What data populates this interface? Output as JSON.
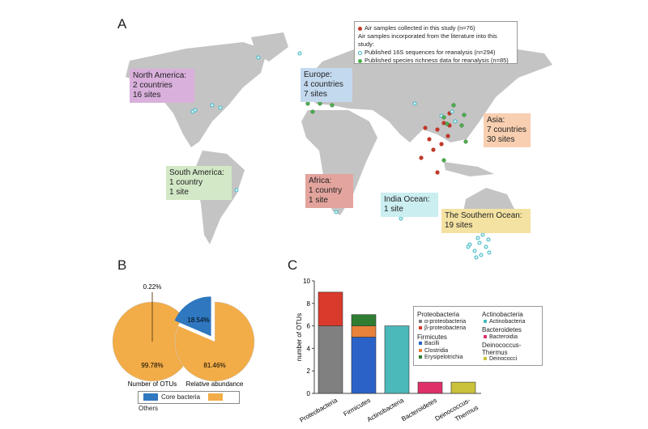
{
  "panels": {
    "a": "A",
    "b": "B",
    "c": "C"
  },
  "map": {
    "legend": {
      "collected": "Air samples collected in this study (n=76)",
      "incorporated": "Air samples incorporated from the literature into this study:",
      "sequences": "Published 16S sequences for reanalysis (n=294)",
      "richness": "Published species richness data for reanalysis (n=85)"
    },
    "colors": {
      "land": "#c4c4c4",
      "collected": "#c0392b",
      "sequences": "#3cb7c4",
      "richness": "#4caf50"
    },
    "regions": [
      {
        "lines": [
          "North America:",
          "2 countries",
          "16 sites"
        ],
        "color": "#d9b0dc"
      },
      {
        "lines": [
          "Europe:",
          "4 countries",
          "7 sites"
        ],
        "color": "#c3d9ee"
      },
      {
        "lines": [
          "Asia:",
          "7 countries",
          "30 sites"
        ],
        "color": "#f8cfb0"
      },
      {
        "lines": [
          "South America:",
          "1 country",
          "1 site"
        ],
        "color": "#d3e8c6"
      },
      {
        "lines": [
          "Africa:",
          "1 country",
          "1 site"
        ],
        "color": "#e3a49d"
      },
      {
        "lines": [
          "India Ocean:",
          "1 site"
        ],
        "color": "#cbeef0"
      },
      {
        "lines": [
          "The Southern Ocean:",
          "19 sites"
        ],
        "color": "#f4e2a2"
      }
    ]
  },
  "chart_data": [
    {
      "type": "pie",
      "title": "Number of OTUs",
      "slices": [
        {
          "label": "Core bacteria",
          "value": 0.22,
          "text": "0.22%"
        },
        {
          "label": "Others",
          "value": 99.78,
          "text": "99.78%"
        }
      ]
    },
    {
      "type": "pie",
      "title": "Relative abundance",
      "slices": [
        {
          "label": "Core bacteria",
          "value": 18.54,
          "text": "18.54%"
        },
        {
          "label": "Others",
          "value": 81.46,
          "text": "81.46%"
        }
      ]
    },
    {
      "type": "bar",
      "stacked": true,
      "ylabel": "number of OTUs",
      "ylim": [
        0,
        10
      ],
      "yticks": [
        "0",
        "2",
        "4",
        "6",
        "8",
        "10"
      ],
      "categories": [
        "Proteobacteria",
        "Firmicutes",
        "Actinobacteria",
        "Bacteroidetes",
        "Deinococcus-Thermus"
      ],
      "series": [
        {
          "name": "α-proteobacteria",
          "group": "Proteobacteria",
          "color": "#808080",
          "values": [
            6,
            0,
            0,
            0,
            0
          ]
        },
        {
          "name": "β-proteobacteria",
          "group": "Proteobacteria",
          "color": "#d93a2b",
          "values": [
            3,
            0,
            0,
            0,
            0
          ]
        },
        {
          "name": "Bacilli",
          "group": "Firmicutes",
          "color": "#2b62c8",
          "values": [
            0,
            5,
            0,
            0,
            0
          ]
        },
        {
          "name": "Clostridia",
          "group": "Firmicutes",
          "color": "#e8813a",
          "values": [
            0,
            1,
            0,
            0,
            0
          ]
        },
        {
          "name": "Erysipelotrichia",
          "group": "Firmicutes",
          "color": "#2f7d32",
          "values": [
            0,
            1,
            0,
            0,
            0
          ]
        },
        {
          "name": "Actinobacteria",
          "group": "Actinobacteria",
          "color": "#4bb8ba",
          "values": [
            0,
            0,
            6,
            0,
            0
          ]
        },
        {
          "name": "Bacteroidia",
          "group": "Bacteroidetes",
          "color": "#e0306a",
          "values": [
            0,
            0,
            0,
            1,
            0
          ]
        },
        {
          "name": "Deinococci",
          "group": "Deinococcus-Thermus",
          "color": "#c9c23a",
          "values": [
            0,
            0,
            0,
            0,
            1
          ]
        }
      ],
      "legend_groups": [
        "Proteobacteria",
        "Firmicutes",
        "Actinobacteria",
        "Bacteroidetes",
        "Deinococcus-Thermus"
      ]
    }
  ],
  "pie_legend": {
    "core": "Core bacteria",
    "others": "Others",
    "core_color": "#2f77bf",
    "others_color": "#f2ac48"
  }
}
